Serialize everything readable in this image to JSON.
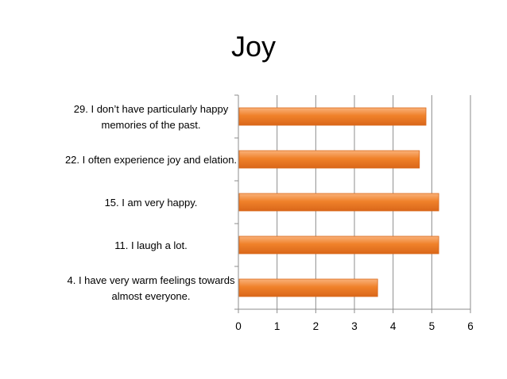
{
  "chart_data": {
    "type": "bar",
    "orientation": "horizontal",
    "title": "Joy",
    "categories": [
      [
        "29. I don’t have particularly happy",
        "memories of the past."
      ],
      [
        "22. I often experience joy and elation."
      ],
      [
        "15. I am very happy."
      ],
      [
        "11. I laugh a lot."
      ],
      [
        "4. I have very warm feelings towards",
        "almost everyone."
      ]
    ],
    "values": [
      4.85,
      4.68,
      5.18,
      5.18,
      3.6
    ],
    "xlim": [
      0,
      6
    ],
    "xticks": [
      "0",
      "1",
      "2",
      "3",
      "4",
      "5",
      "6"
    ],
    "grid": true,
    "bar_color": "#F0812A",
    "bar_color_light": "#F9B27A",
    "bar_color_dark": "#D9671A"
  }
}
